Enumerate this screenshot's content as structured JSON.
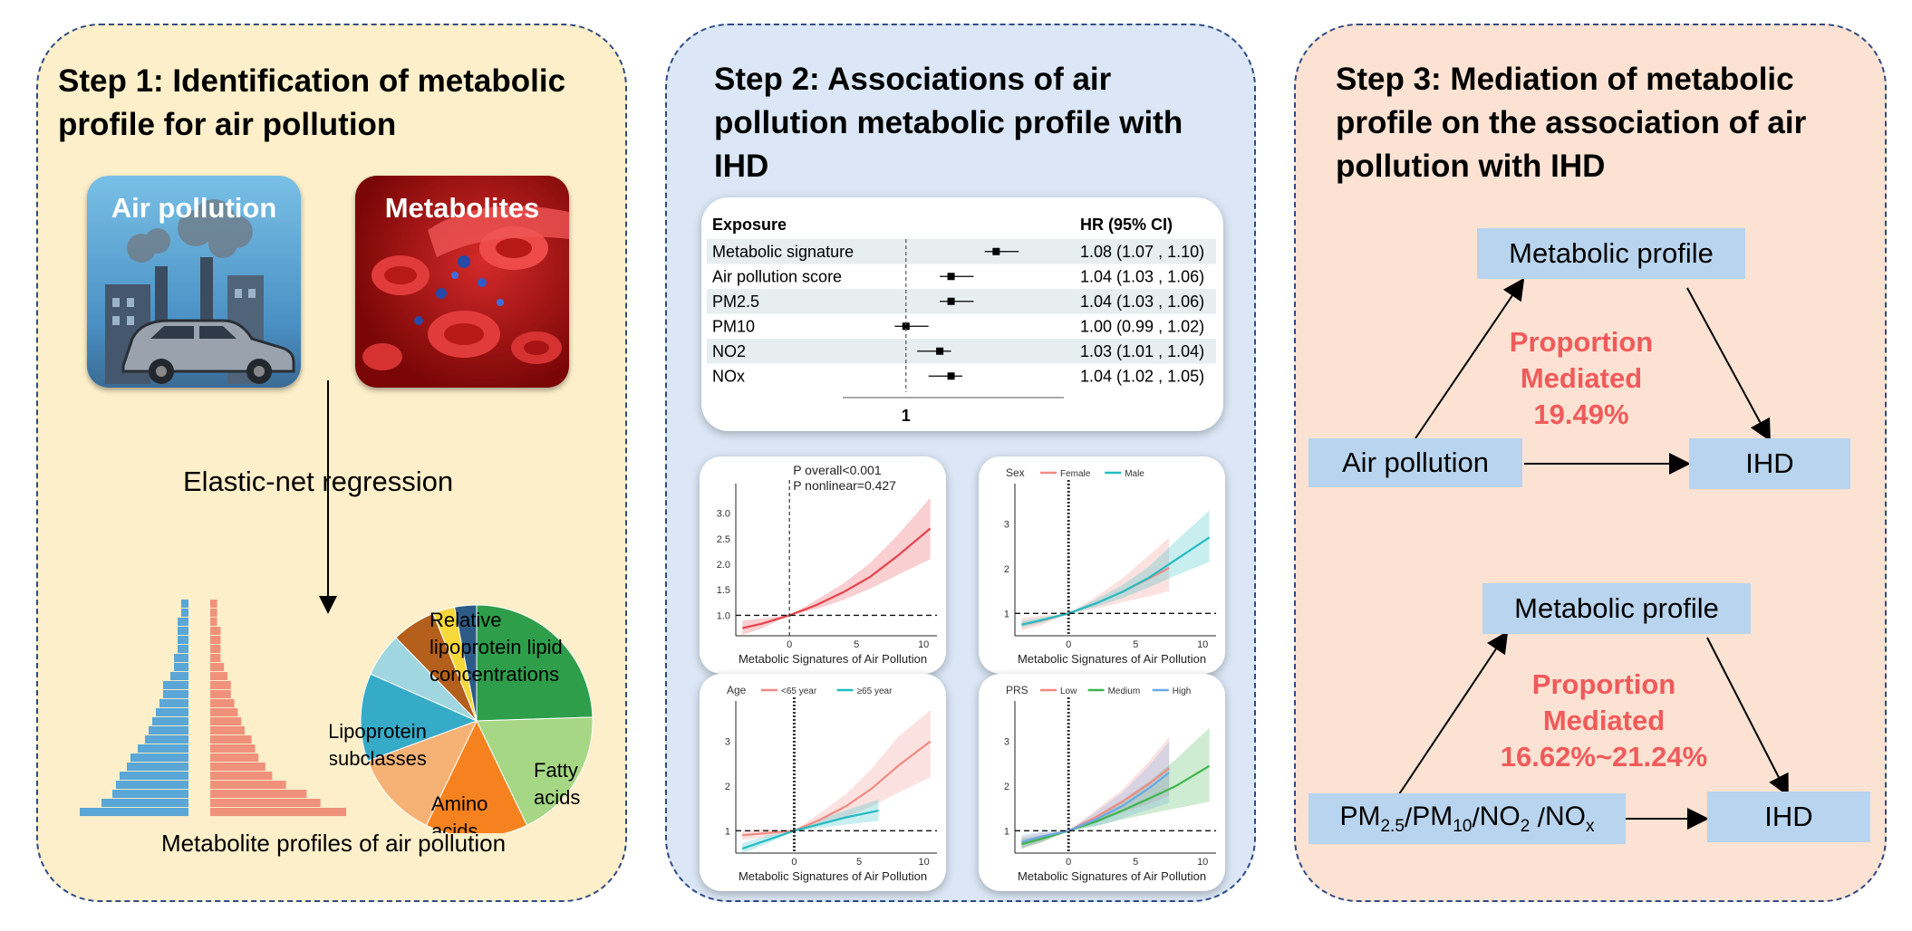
{
  "step1": {
    "title_line1": "Step 1:  Identification of metabolic",
    "title_line2": "profile for air pollution",
    "img1_label": "Air pollution",
    "img2_label": "Metabolites",
    "method": "Elastic-net regression",
    "caption": "Metabolite profiles of air pollution",
    "pie": {
      "slices": [
        {
          "label_lines": [
            "Relative",
            "lipoprotein lipid",
            "concentrations"
          ],
          "value": 24,
          "color": "#2e9e4b"
        },
        {
          "label_lines": [
            "Fatty",
            "acids"
          ],
          "value": 18,
          "color": "#a6d785"
        },
        {
          "label_lines": [
            "Amino",
            "acids"
          ],
          "value": 14,
          "color": "#f6821f"
        },
        {
          "label_lines": [
            "Lipoprotein",
            "subclasses"
          ],
          "value": 12,
          "color": "#f6b275"
        },
        {
          "label_lines": [],
          "value": 12,
          "color": "#35abc8"
        },
        {
          "label_lines": [],
          "value": 6,
          "color": "#9fd6e0"
        },
        {
          "label_lines": [],
          "value": 6,
          "color": "#b45f1b"
        },
        {
          "label_lines": [],
          "value": 3,
          "color": "#f7d83a"
        },
        {
          "label_lines": [],
          "value": 3,
          "color": "#2d5b86"
        }
      ]
    },
    "bars_blue": [
      2,
      2,
      3,
      3,
      3,
      3,
      4,
      4,
      5,
      7,
      7,
      8,
      9,
      10,
      11,
      12,
      14,
      16,
      17,
      19,
      20,
      21,
      24,
      30
    ],
    "bars_red": [
      2,
      2,
      2,
      3,
      3,
      3,
      3,
      4,
      5,
      6,
      6,
      7,
      8,
      9,
      10,
      12,
      13,
      14,
      16,
      18,
      22,
      28,
      32,
      40
    ]
  },
  "step2": {
    "title_line1": "Step 2:  Associations of air",
    "title_line2": "pollution metabolic profile with",
    "title_line3": "IHD",
    "forest": {
      "header_exposure": "Exposure",
      "header_hr": "HR (95% CI)",
      "ref_label": "1",
      "xlim": [
        0.96,
        1.14
      ],
      "rows": [
        {
          "exposure": "Metabolic signature",
          "hr": 1.08,
          "lo": 1.07,
          "hi": 1.1,
          "text": "1.08 (1.07 , 1.10)"
        },
        {
          "exposure": "Air pollution score",
          "hr": 1.04,
          "lo": 1.03,
          "hi": 1.06,
          "text": "1.04 (1.03 , 1.06)"
        },
        {
          "exposure": "PM2.5",
          "hr": 1.04,
          "lo": 1.03,
          "hi": 1.06,
          "text": "1.04 (1.03 , 1.06)"
        },
        {
          "exposure": "PM10",
          "hr": 1.0,
          "lo": 0.99,
          "hi": 1.02,
          "text": "1.00 (0.99 , 1.02)"
        },
        {
          "exposure": "NO2",
          "hr": 1.03,
          "lo": 1.01,
          "hi": 1.04,
          "text": "1.03 (1.01 , 1.04)"
        },
        {
          "exposure": "NOx",
          "hr": 1.04,
          "lo": 1.02,
          "hi": 1.05,
          "text": "1.04 (1.02 , 1.05)"
        }
      ]
    },
    "curves": [
      {
        "xlabel": "Metabolic Signatures of Air Pollution",
        "legend_title": "",
        "annotation_lines": [
          "P overall<0.001",
          "P nonlinear=0.427"
        ],
        "xticks": [
          0,
          5,
          10
        ],
        "yticks": [
          1.0,
          1.5,
          2.0,
          2.5,
          3.0
        ],
        "xlim": [
          -4,
          11
        ],
        "ylim": [
          0.6,
          3.4
        ],
        "series": [
          {
            "name": "",
            "color": "#e8414a",
            "x": [
              -3.5,
              -2,
              0,
              2,
              4,
              6,
              8,
              10.5
            ],
            "y": [
              0.75,
              0.84,
              1.0,
              1.2,
              1.45,
              1.75,
              2.15,
              2.7
            ],
            "ci_lo": [
              0.62,
              0.75,
              1.0,
              1.12,
              1.3,
              1.52,
              1.78,
              2.1
            ],
            "ci_hi": [
              0.9,
              0.94,
              1.0,
              1.3,
              1.62,
              2.02,
              2.55,
              3.3
            ]
          }
        ]
      },
      {
        "xlabel": "Metabolic Signatures of Air Pollution",
        "legend_title": "Sex",
        "annotation_lines": [],
        "xticks": [
          0,
          5,
          10
        ],
        "yticks": [
          1,
          2,
          3
        ],
        "xlim": [
          -4,
          11
        ],
        "ylim": [
          0.5,
          3.7
        ],
        "series": [
          {
            "name": "Female",
            "color": "#f08a82",
            "x": [
              -3.5,
              -2,
              0,
              2,
              4,
              6,
              7.5
            ],
            "y": [
              0.75,
              0.84,
              1.0,
              1.22,
              1.48,
              1.78,
              2.02
            ],
            "ci_lo": [
              0.62,
              0.74,
              1.0,
              1.1,
              1.25,
              1.38,
              1.5
            ],
            "ci_hi": [
              0.9,
              0.95,
              1.0,
              1.36,
              1.78,
              2.3,
              2.7
            ]
          },
          {
            "name": "Male",
            "color": "#23bcc2",
            "x": [
              -3.5,
              -2,
              0,
              2,
              4,
              6,
              8,
              10.5
            ],
            "y": [
              0.75,
              0.85,
              1.0,
              1.22,
              1.48,
              1.8,
              2.2,
              2.7
            ],
            "ci_lo": [
              0.68,
              0.79,
              1.0,
              1.14,
              1.34,
              1.58,
              1.85,
              2.15
            ],
            "ci_hi": [
              0.83,
              0.91,
              1.0,
              1.31,
              1.63,
              2.05,
              2.62,
              3.3
            ]
          }
        ]
      },
      {
        "xlabel": "Metabolic Signatures of Air Pollution",
        "legend_title": "Age",
        "annotation_lines": [],
        "xticks": [
          0,
          5,
          10
        ],
        "yticks": [
          1,
          2,
          3
        ],
        "xlim": [
          -4.5,
          11
        ],
        "ylim": [
          0.5,
          3.7
        ],
        "series": [
          {
            "name": "<65 year",
            "color": "#f08a82",
            "x": [
              -4,
              -2,
              0,
              2,
              4,
              6,
              8,
              10.5
            ],
            "y": [
              0.9,
              0.95,
              1.0,
              1.25,
              1.55,
              1.95,
              2.45,
              3.0
            ],
            "ci_lo": [
              0.8,
              0.86,
              1.0,
              1.12,
              1.3,
              1.55,
              1.85,
              2.2
            ],
            "ci_hi": [
              1.0,
              1.04,
              1.0,
              1.4,
              1.82,
              2.4,
              3.1,
              3.7
            ]
          },
          {
            "name": "≥65 year",
            "color": "#23bcc2",
            "x": [
              -4,
              -2,
              0,
              2,
              4,
              6.5
            ],
            "y": [
              0.6,
              0.8,
              1.0,
              1.15,
              1.3,
              1.45
            ],
            "ci_lo": [
              0.5,
              0.72,
              1.0,
              1.06,
              1.14,
              1.22
            ],
            "ci_hi": [
              0.72,
              0.9,
              1.0,
              1.25,
              1.46,
              1.7
            ]
          }
        ]
      },
      {
        "xlabel": "Metabolic Signatures of Air Pollution",
        "legend_title": "PRS",
        "annotation_lines": [],
        "xticks": [
          0,
          5,
          10
        ],
        "yticks": [
          1,
          2,
          3
        ],
        "xlim": [
          -4,
          11
        ],
        "ylim": [
          0.5,
          3.7
        ],
        "series": [
          {
            "name": "Low",
            "color": "#f08a82",
            "x": [
              -3.5,
              -2,
              0,
              2,
              4,
              6,
              7.5
            ],
            "y": [
              0.72,
              0.84,
              1.0,
              1.3,
              1.65,
              2.05,
              2.4
            ],
            "ci_lo": [
              0.6,
              0.74,
              1.0,
              1.18,
              1.4,
              1.6,
              1.78
            ],
            "ci_hi": [
              0.86,
              0.95,
              1.0,
              1.45,
              1.92,
              2.55,
              3.1
            ]
          },
          {
            "name": "Medium",
            "color": "#3cb54a",
            "x": [
              -3.5,
              -2,
              0,
              2,
              4,
              6,
              8,
              10.5
            ],
            "y": [
              0.7,
              0.82,
              1.0,
              1.2,
              1.45,
              1.72,
              2.0,
              2.45
            ],
            "ci_lo": [
              0.6,
              0.74,
              1.0,
              1.1,
              1.25,
              1.38,
              1.5,
              1.65
            ],
            "ci_hi": [
              0.82,
              0.9,
              1.0,
              1.32,
              1.68,
              2.1,
              2.6,
              3.3
            ]
          },
          {
            "name": "High",
            "color": "#6aa8e6",
            "x": [
              -3.5,
              -2,
              0,
              2,
              4,
              6,
              7.5
            ],
            "y": [
              0.75,
              0.87,
              1.0,
              1.25,
              1.55,
              1.95,
              2.3
            ],
            "ci_lo": [
              0.62,
              0.76,
              1.0,
              1.1,
              1.28,
              1.48,
              1.62
            ],
            "ci_hi": [
              0.9,
              0.98,
              1.0,
              1.42,
              1.85,
              2.45,
              3.0
            ]
          }
        ]
      }
    ]
  },
  "step3": {
    "title_line1": "Step 3:  Mediation of metabolic",
    "title_line2": "profile on the association of air",
    "title_line3": "pollution with IHD",
    "top": {
      "mediator": "Metabolic profile",
      "exposure": "Air pollution",
      "outcome": "IHD",
      "prop_line1": "Proportion",
      "prop_line2": "Mediated",
      "prop_value": "19.49%"
    },
    "bottom": {
      "mediator": "Metabolic profile",
      "outcome": "IHD",
      "prop_line1": "Proportion",
      "prop_line2": "Mediated",
      "prop_value": "16.62%~21.24%",
      "exp_pm": "PM",
      "exp_pm25_sub": "2.5",
      "exp_pm10_sub": "10",
      "exp_no": "NO",
      "exp_no2_sub": "2",
      "exp_nox_sub": "x",
      "sep": "/"
    },
    "accent_color": "#f05a5a",
    "box_color": "#b9d4ee"
  }
}
